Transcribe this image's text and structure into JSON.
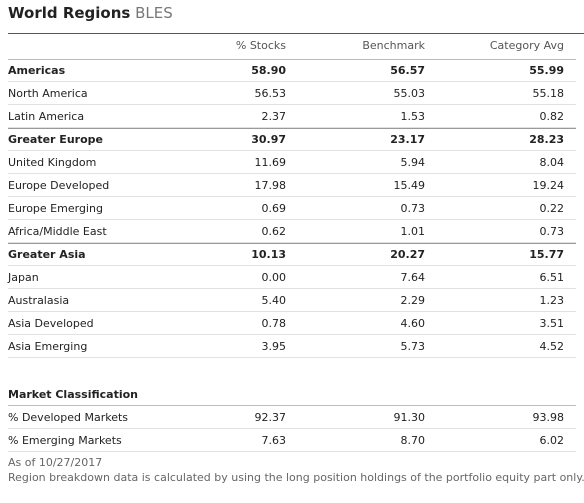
{
  "header": {
    "title": "World Regions",
    "ticker": "BLES"
  },
  "table": {
    "columns": [
      "% Stocks",
      "Benchmark",
      "Category Avg"
    ],
    "rows": [
      {
        "label": "Americas",
        "values": [
          "58.90",
          "56.57",
          "55.99"
        ],
        "bold": true
      },
      {
        "label": "North America",
        "values": [
          "56.53",
          "55.03",
          "55.18"
        ]
      },
      {
        "label": "Latin America",
        "values": [
          "2.37",
          "1.53",
          "0.82"
        ]
      },
      {
        "label": "Greater Europe",
        "values": [
          "30.97",
          "23.17",
          "28.23"
        ],
        "bold": true
      },
      {
        "label": "United Kingdom",
        "values": [
          "11.69",
          "5.94",
          "8.04"
        ]
      },
      {
        "label": "Europe Developed",
        "values": [
          "17.98",
          "15.49",
          "19.24"
        ]
      },
      {
        "label": "Europe Emerging",
        "values": [
          "0.69",
          "0.73",
          "0.22"
        ]
      },
      {
        "label": "Africa/Middle East",
        "values": [
          "0.62",
          "1.01",
          "0.73"
        ]
      },
      {
        "label": "Greater Asia",
        "values": [
          "10.13",
          "20.27",
          "15.77"
        ],
        "bold": true
      },
      {
        "label": "Japan",
        "values": [
          "0.00",
          "7.64",
          "6.51"
        ]
      },
      {
        "label": "Australasia",
        "values": [
          "5.40",
          "2.29",
          "1.23"
        ]
      },
      {
        "label": "Asia Developed",
        "values": [
          "0.78",
          "4.60",
          "3.51"
        ]
      },
      {
        "label": "Asia Emerging",
        "values": [
          "3.95",
          "5.73",
          "4.52"
        ]
      }
    ]
  },
  "classification": {
    "title": "Market Classification",
    "rows": [
      {
        "label": "% Developed Markets",
        "values": [
          "92.37",
          "91.30",
          "93.98"
        ]
      },
      {
        "label": "% Emerging Markets",
        "values": [
          "7.63",
          "8.70",
          "6.02"
        ]
      }
    ]
  },
  "footnotes": [
    "As of 10/27/2017",
    "Region breakdown data is calculated by using the long position holdings of the portfolio equity part only."
  ]
}
